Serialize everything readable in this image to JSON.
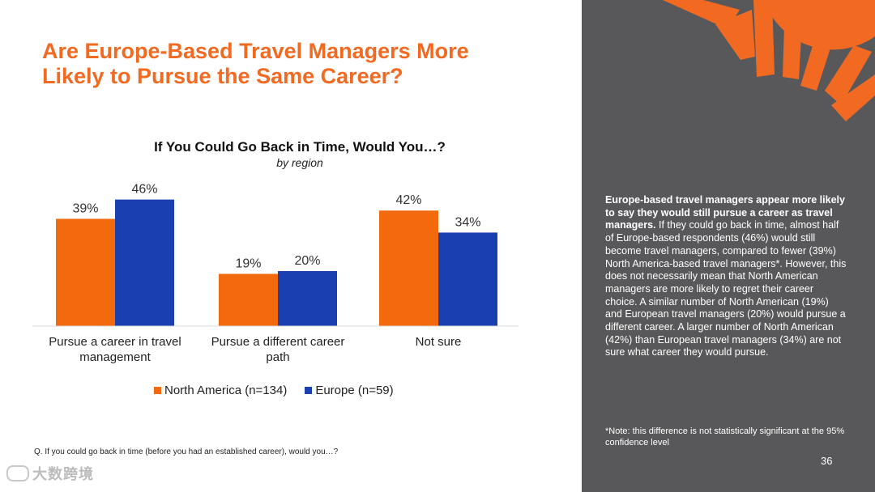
{
  "slide": {
    "title_line1": "Are Europe-Based Travel Managers More",
    "title_line2": "Likely to Pursue the Same Career?",
    "question": "Q. If you could go back in time (before you had an established career), would you…?",
    "page_number": "36",
    "watermark": "大数跨境"
  },
  "side_panel": {
    "bold_lead": "Europe-based travel managers appear more likely to say they would still pursue a career as travel managers.",
    "body": " If they could go back in time, almost half of Europe-based respondents (46%) would still become travel managers, compared to fewer (39%) North America-based travel managers*. However, this does not necessarily mean that North American managers are more likely to regret their career choice. A similar number of North American (19%) and European travel managers (20%) would pursue a different career. A larger number of North American (42%) than European travel managers (34%) are not sure what career they would pursue.",
    "note": "*Note: this difference is not statistically significant at the 95% confidence level",
    "bg_color": "#58585a",
    "accent_color": "#f26a21"
  },
  "chart_data": {
    "type": "bar",
    "title": "If You Could Go Back in Time, Would You…?",
    "subtitle": "by region",
    "categories": [
      [
        "Pursue a career in travel",
        "management"
      ],
      [
        "Pursue a different career",
        "path"
      ],
      [
        "Not sure"
      ]
    ],
    "series": [
      {
        "name": "North America (n=134)",
        "values": [
          39,
          19,
          42
        ],
        "color": "#f26a0d"
      },
      {
        "name": "Europe (n=59)",
        "values": [
          46,
          20,
          34
        ],
        "color": "#1a3fb0"
      }
    ],
    "value_suffix": "%",
    "ylim": [
      0,
      50
    ],
    "grid": false,
    "legend": "bottom"
  }
}
